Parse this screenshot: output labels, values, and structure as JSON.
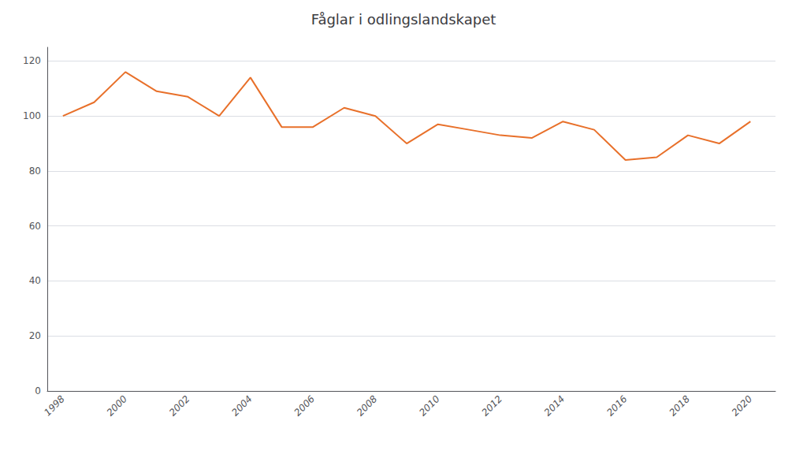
{
  "chart_data": {
    "type": "line",
    "title": "Fåglar i odlingslandskapet",
    "x": [
      1998,
      1999,
      2000,
      2001,
      2002,
      2003,
      2004,
      2005,
      2006,
      2007,
      2008,
      2009,
      2010,
      2011,
      2012,
      2013,
      2014,
      2015,
      2016,
      2017,
      2018,
      2019,
      2020
    ],
    "values": [
      100,
      105,
      116,
      109,
      107,
      100,
      114,
      96,
      96,
      103,
      100,
      90,
      97,
      95,
      93,
      92,
      98,
      95,
      84,
      85,
      93,
      90,
      98
    ],
    "color": "#E8702A",
    "xlim": [
      1997.5,
      2020.8
    ],
    "xticks": [
      1998,
      2000,
      2002,
      2004,
      2006,
      2008,
      2010,
      2012,
      2014,
      2016,
      2018,
      2020
    ],
    "ylim": [
      0,
      125
    ],
    "yticks": [
      0,
      20,
      40,
      60,
      80,
      100,
      120
    ],
    "grid": true
  }
}
